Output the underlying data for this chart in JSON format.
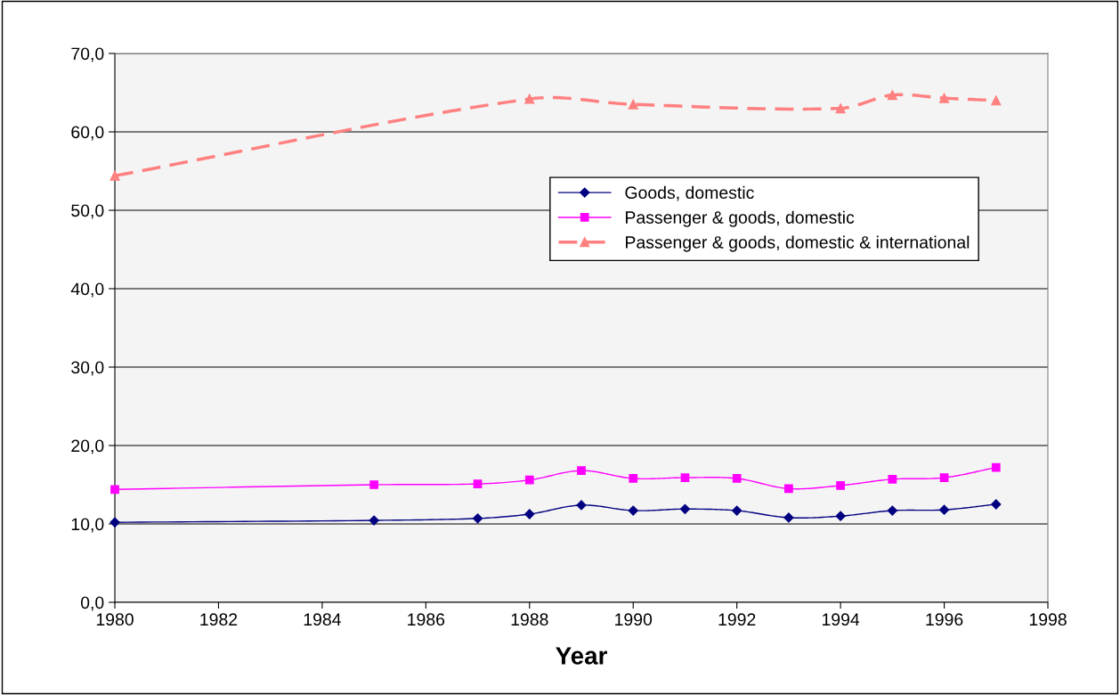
{
  "chart_data": {
    "type": "line",
    "xlabel": "Year",
    "xlim": [
      1980,
      1998
    ],
    "xticks": [
      1980,
      1982,
      1984,
      1986,
      1988,
      1990,
      1992,
      1994,
      1996,
      1998
    ],
    "ylim": [
      0,
      70
    ],
    "yticks": [
      {
        "value": 0,
        "label": "0,0"
      },
      {
        "value": 10,
        "label": "10,0"
      },
      {
        "value": 20,
        "label": "20,0"
      },
      {
        "value": 30,
        "label": "30,0"
      },
      {
        "value": 40,
        "label": "40,0"
      },
      {
        "value": 50,
        "label": "50,0"
      },
      {
        "value": 60,
        "label": "60,0"
      },
      {
        "value": 70,
        "label": "70,0"
      }
    ],
    "grid": "y",
    "legend": "top right",
    "series": [
      {
        "name": "Goods, domestic",
        "color": "#000080",
        "marker": "diamond",
        "line_style": "solid",
        "x": [
          1980,
          1985,
          1987,
          1988,
          1989,
          1990,
          1991,
          1992,
          1993,
          1994,
          1995,
          1996,
          1997
        ],
        "values": [
          10.2,
          10.45,
          10.7,
          11.25,
          12.4,
          11.7,
          11.9,
          11.7,
          10.8,
          11.0,
          11.7,
          11.8,
          12.5
        ]
      },
      {
        "name": "Passenger & goods, domestic",
        "color": "#ff00ff",
        "marker": "square",
        "line_style": "solid",
        "x": [
          1980,
          1985,
          1987,
          1988,
          1989,
          1990,
          1991,
          1992,
          1993,
          1994,
          1995,
          1996,
          1997
        ],
        "values": [
          14.4,
          15.0,
          15.1,
          15.6,
          16.8,
          15.8,
          15.9,
          15.8,
          14.5,
          14.9,
          15.7,
          15.9,
          17.2
        ]
      },
      {
        "name": "Passenger & goods, domestic & international",
        "color": "#ff8080",
        "marker": "triangle",
        "line_style": "dashed",
        "x": [
          1980,
          1988,
          1990,
          1994,
          1995,
          1996,
          1997
        ],
        "values": [
          54.4,
          64.2,
          63.5,
          63.0,
          64.7,
          64.3,
          64.0
        ]
      }
    ]
  }
}
